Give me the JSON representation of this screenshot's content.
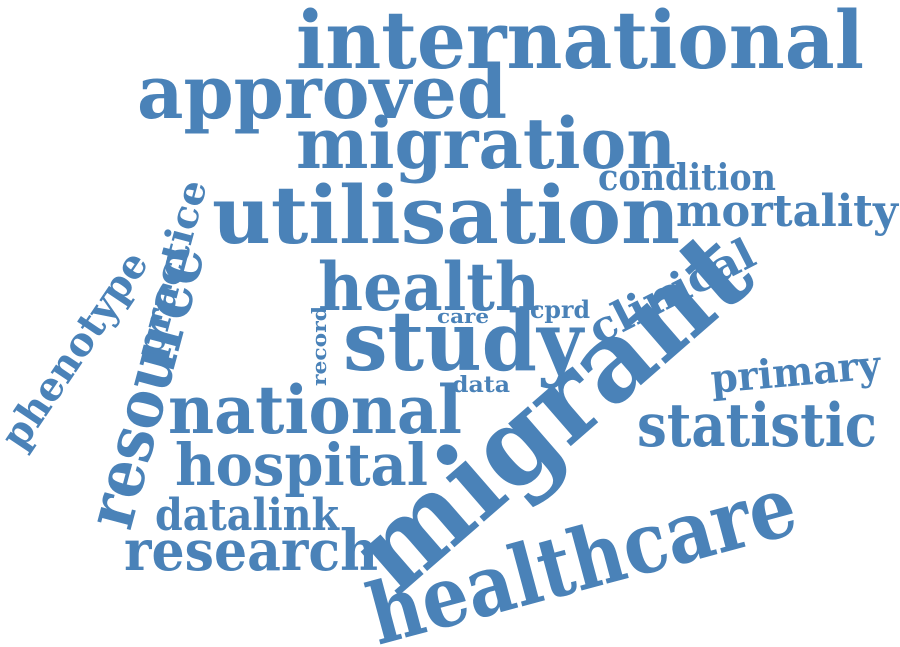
{
  "word_color": "#4a82b8",
  "words": [
    "international",
    "approved",
    "migration",
    "condition",
    "utilisation",
    "mortality",
    "practice",
    "phenotype",
    "resource",
    "clinical",
    "health",
    "care",
    "cprd",
    "record",
    "study",
    "primary",
    "data",
    "national",
    "migrant",
    "statistic",
    "hospital",
    "datalink",
    "research",
    "healthcare"
  ]
}
